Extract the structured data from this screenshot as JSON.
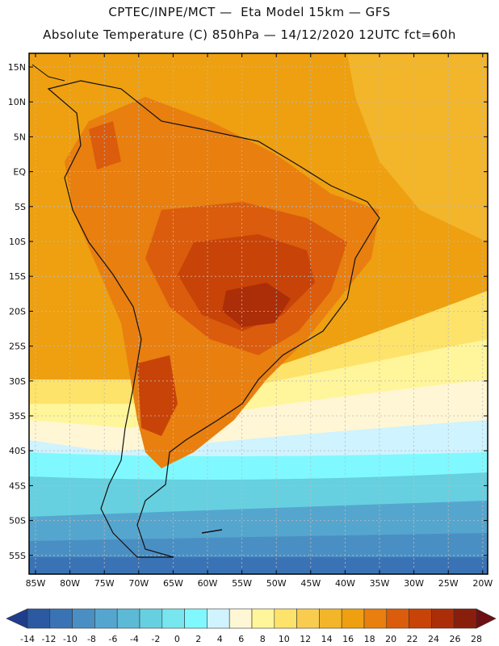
{
  "header": {
    "line1": "CPTEC/INPE/MCT —  Eta Model 15km — GFS",
    "line2": "Absolute Temperature (C) 850hPa — 14/12/2020 12UTC fct=60h"
  },
  "axes": {
    "lat_labels": [
      "15N",
      "10N",
      "5N",
      "EQ",
      "5S",
      "10S",
      "15S",
      "20S",
      "25S",
      "30S",
      "35S",
      "40S",
      "45S",
      "50S",
      "55S"
    ],
    "lon_labels": [
      "85W",
      "80W",
      "75W",
      "70W",
      "65W",
      "60W",
      "55W",
      "50W",
      "45W",
      "40W",
      "35W",
      "30W",
      "25W",
      "20W"
    ]
  },
  "colorbar": {
    "labels": [
      "-14",
      "-12",
      "-10",
      "-8",
      "-6",
      "-4",
      "-2",
      "0",
      "2",
      "4",
      "6",
      "8",
      "10",
      "12",
      "14",
      "16",
      "18",
      "20",
      "22",
      "24",
      "26",
      "28"
    ],
    "colors": [
      "#1f3d8c",
      "#2b5aa3",
      "#3a73b5",
      "#4a8fc4",
      "#55a6cf",
      "#5cbad6",
      "#66d0e0",
      "#78e6ee",
      "#7ff9ff",
      "#cff3ff",
      "#fff6d5",
      "#fff59a",
      "#fde36a",
      "#f9cc50",
      "#f3b52a",
      "#eea010",
      "#e87f0f",
      "#db5c0c",
      "#c84308",
      "#ab2e08",
      "#8a1e0c",
      "#6e0f14"
    ]
  }
}
